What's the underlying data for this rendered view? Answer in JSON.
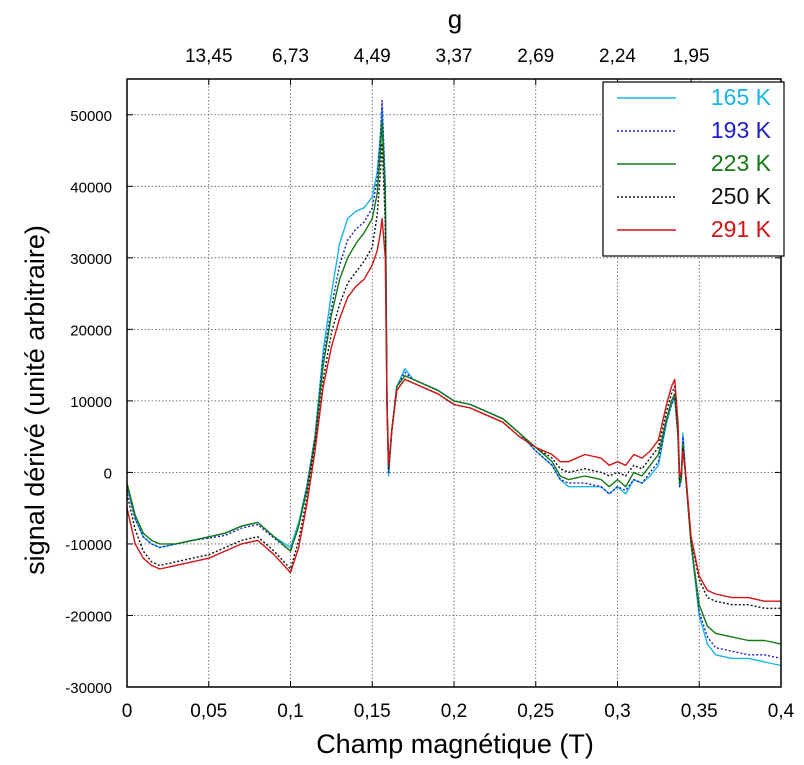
{
  "chart_data": {
    "type": "line",
    "xlabel": "Champ magnétique (T)",
    "ylabel": "signal dérivé (unité arbitraire)",
    "x2label": "g",
    "xlim": [
      0,
      0.4
    ],
    "ylim": [
      -30000,
      55000
    ],
    "grid": true,
    "legend_position": "top-right",
    "x_ticks": [
      {
        "v": 0,
        "label": "0"
      },
      {
        "v": 0.05,
        "label": "0,05"
      },
      {
        "v": 0.1,
        "label": "0,1"
      },
      {
        "v": 0.15,
        "label": "0,15"
      },
      {
        "v": 0.2,
        "label": "0,2"
      },
      {
        "v": 0.25,
        "label": "0,25"
      },
      {
        "v": 0.3,
        "label": "0,3"
      },
      {
        "v": 0.35,
        "label": "0,35"
      },
      {
        "v": 0.4,
        "label": "0,4"
      }
    ],
    "y_ticks": [
      {
        "v": -30000,
        "label": "-30000"
      },
      {
        "v": -20000,
        "label": "-20000"
      },
      {
        "v": -10000,
        "label": "-10000"
      },
      {
        "v": 0,
        "label": "0"
      },
      {
        "v": 10000,
        "label": "10000"
      },
      {
        "v": 20000,
        "label": "20000"
      },
      {
        "v": 30000,
        "label": "30000"
      },
      {
        "v": 40000,
        "label": "40000"
      },
      {
        "v": 50000,
        "label": "50000"
      }
    ],
    "top_ticks": [
      {
        "v": 0.05,
        "label": "13,45"
      },
      {
        "v": 0.1,
        "label": "6,73"
      },
      {
        "v": 0.15,
        "label": "4,49"
      },
      {
        "v": 0.2,
        "label": "3,37"
      },
      {
        "v": 0.25,
        "label": "2,69"
      },
      {
        "v": 0.3,
        "label": "2,24"
      },
      {
        "v": 0.345,
        "label": "1,95"
      }
    ],
    "series": [
      {
        "name": "165 K",
        "color": "#17b6e3",
        "dash": "solid",
        "x": [
          0,
          0.005,
          0.01,
          0.015,
          0.02,
          0.03,
          0.04,
          0.05,
          0.06,
          0.07,
          0.08,
          0.09,
          0.1,
          0.105,
          0.11,
          0.115,
          0.12,
          0.125,
          0.13,
          0.135,
          0.14,
          0.145,
          0.15,
          0.153,
          0.155,
          0.156,
          0.158,
          0.159,
          0.16,
          0.162,
          0.165,
          0.17,
          0.175,
          0.18,
          0.19,
          0.2,
          0.21,
          0.22,
          0.23,
          0.24,
          0.25,
          0.26,
          0.265,
          0.27,
          0.28,
          0.29,
          0.295,
          0.3,
          0.305,
          0.31,
          0.315,
          0.32,
          0.325,
          0.33,
          0.333,
          0.335,
          0.337,
          0.338,
          0.339,
          0.34,
          0.342,
          0.345,
          0.35,
          0.355,
          0.36,
          0.37,
          0.38,
          0.39,
          0.4
        ],
        "y": [
          -2000,
          -6500,
          -9000,
          -10000,
          -10500,
          -10000,
          -9500,
          -9000,
          -8500,
          -7500,
          -7000,
          -9000,
          -10500,
          -7000,
          -2000,
          5000,
          17000,
          25000,
          32000,
          35500,
          36500,
          37000,
          38500,
          42000,
          47000,
          51000,
          40000,
          10000,
          -500,
          6000,
          12000,
          14500,
          13000,
          12500,
          11500,
          10000,
          9500,
          8500,
          7500,
          5500,
          3000,
          1000,
          -1000,
          -2000,
          -2000,
          -2000,
          -3000,
          -2000,
          -3000,
          -1000,
          -1500,
          -500,
          1000,
          7000,
          9500,
          10500,
          5000,
          -2000,
          -1000,
          5500,
          -1500,
          -10000,
          -20000,
          -24000,
          -25500,
          -26000,
          -26000,
          -26500,
          -27000
        ]
      },
      {
        "name": "193 K",
        "color": "#1e1ec8",
        "dash": "dotted",
        "x": [
          0,
          0.005,
          0.01,
          0.015,
          0.02,
          0.03,
          0.04,
          0.05,
          0.06,
          0.07,
          0.08,
          0.09,
          0.1,
          0.105,
          0.11,
          0.115,
          0.12,
          0.125,
          0.13,
          0.135,
          0.14,
          0.145,
          0.15,
          0.153,
          0.155,
          0.156,
          0.158,
          0.159,
          0.16,
          0.162,
          0.165,
          0.17,
          0.175,
          0.18,
          0.19,
          0.2,
          0.21,
          0.22,
          0.23,
          0.24,
          0.25,
          0.26,
          0.265,
          0.27,
          0.28,
          0.29,
          0.295,
          0.3,
          0.305,
          0.31,
          0.315,
          0.32,
          0.325,
          0.33,
          0.333,
          0.335,
          0.337,
          0.338,
          0.339,
          0.34,
          0.342,
          0.345,
          0.35,
          0.355,
          0.36,
          0.37,
          0.38,
          0.39,
          0.4
        ],
        "y": [
          -2000,
          -6500,
          -9000,
          -10000,
          -10500,
          -10000,
          -9500,
          -9200,
          -8800,
          -7800,
          -7300,
          -9200,
          -11000,
          -7500,
          -2000,
          5000,
          16000,
          23000,
          29000,
          32500,
          34000,
          35000,
          37000,
          41000,
          47000,
          52000,
          40000,
          10000,
          0,
          6000,
          12000,
          14000,
          13000,
          12500,
          11500,
          10000,
          9500,
          8500,
          7500,
          5500,
          3000,
          1000,
          -1000,
          -1500,
          -1500,
          -2000,
          -3000,
          -2000,
          -2500,
          -1000,
          -1500,
          0,
          1500,
          7000,
          9500,
          10500,
          5000,
          -2000,
          -1000,
          5000,
          -1500,
          -10000,
          -19500,
          -23000,
          -24500,
          -25000,
          -25500,
          -25500,
          -26000
        ]
      },
      {
        "name": "223 K",
        "color": "#147814",
        "dash": "solid",
        "x": [
          0,
          0.005,
          0.01,
          0.015,
          0.02,
          0.03,
          0.04,
          0.05,
          0.06,
          0.07,
          0.08,
          0.09,
          0.1,
          0.105,
          0.11,
          0.115,
          0.12,
          0.125,
          0.13,
          0.135,
          0.14,
          0.145,
          0.15,
          0.153,
          0.155,
          0.156,
          0.158,
          0.159,
          0.16,
          0.162,
          0.165,
          0.17,
          0.175,
          0.18,
          0.19,
          0.2,
          0.21,
          0.22,
          0.23,
          0.24,
          0.25,
          0.26,
          0.265,
          0.27,
          0.28,
          0.29,
          0.295,
          0.3,
          0.305,
          0.31,
          0.315,
          0.32,
          0.325,
          0.33,
          0.333,
          0.335,
          0.337,
          0.338,
          0.339,
          0.34,
          0.342,
          0.345,
          0.35,
          0.355,
          0.36,
          0.37,
          0.38,
          0.39,
          0.4
        ],
        "y": [
          -1500,
          -6000,
          -8500,
          -9500,
          -10000,
          -10000,
          -9500,
          -9000,
          -8500,
          -7500,
          -7000,
          -9000,
          -11000,
          -7500,
          -2500,
          4500,
          15000,
          22000,
          27000,
          30000,
          32000,
          33500,
          35500,
          39000,
          45000,
          49000,
          38000,
          10000,
          500,
          6000,
          12000,
          13500,
          13000,
          12500,
          11500,
          10000,
          9500,
          8500,
          7500,
          5500,
          3500,
          1500,
          -500,
          -1000,
          -500,
          -1000,
          -2000,
          -1000,
          -2000,
          0,
          -500,
          1000,
          2500,
          7500,
          10000,
          11000,
          5500,
          -1500,
          -1000,
          4000,
          -1500,
          -10000,
          -18500,
          -21500,
          -22500,
          -23000,
          -23500,
          -23500,
          -24000
        ]
      },
      {
        "name": "250 K",
        "color": "#111111",
        "dash": "dotted",
        "x": [
          0,
          0.005,
          0.01,
          0.015,
          0.02,
          0.03,
          0.04,
          0.05,
          0.06,
          0.07,
          0.08,
          0.09,
          0.1,
          0.105,
          0.11,
          0.115,
          0.12,
          0.125,
          0.13,
          0.135,
          0.14,
          0.145,
          0.15,
          0.153,
          0.155,
          0.156,
          0.158,
          0.159,
          0.16,
          0.162,
          0.165,
          0.17,
          0.175,
          0.18,
          0.19,
          0.2,
          0.21,
          0.22,
          0.23,
          0.24,
          0.25,
          0.26,
          0.265,
          0.27,
          0.28,
          0.29,
          0.295,
          0.3,
          0.305,
          0.31,
          0.315,
          0.32,
          0.325,
          0.33,
          0.333,
          0.335,
          0.337,
          0.338,
          0.339,
          0.34,
          0.342,
          0.345,
          0.35,
          0.355,
          0.36,
          0.37,
          0.38,
          0.39,
          0.4
        ],
        "y": [
          -3000,
          -8000,
          -11000,
          -12500,
          -13000,
          -12500,
          -12000,
          -11500,
          -10500,
          -9500,
          -9000,
          -11000,
          -13500,
          -9500,
          -3500,
          4000,
          13000,
          19500,
          23500,
          26500,
          28000,
          29500,
          31500,
          36000,
          42000,
          46000,
          35000,
          9000,
          500,
          6000,
          11500,
          13000,
          12500,
          12000,
          11000,
          9500,
          9000,
          8000,
          7000,
          5000,
          3500,
          2000,
          500,
          0,
          500,
          0,
          -500,
          0,
          -500,
          1000,
          500,
          2000,
          3500,
          8500,
          11000,
          12000,
          6000,
          -1000,
          -500,
          3500,
          -1000,
          -9500,
          -15000,
          -17500,
          -18000,
          -18500,
          -18500,
          -19000,
          -19000
        ]
      },
      {
        "name": "291 K",
        "color": "#d21414",
        "dash": "solid",
        "x": [
          0,
          0.005,
          0.01,
          0.015,
          0.02,
          0.03,
          0.04,
          0.05,
          0.06,
          0.07,
          0.08,
          0.09,
          0.1,
          0.105,
          0.11,
          0.115,
          0.12,
          0.125,
          0.13,
          0.135,
          0.14,
          0.145,
          0.15,
          0.153,
          0.155,
          0.156,
          0.158,
          0.159,
          0.16,
          0.162,
          0.165,
          0.17,
          0.175,
          0.18,
          0.19,
          0.2,
          0.21,
          0.22,
          0.23,
          0.24,
          0.25,
          0.26,
          0.265,
          0.27,
          0.28,
          0.29,
          0.295,
          0.3,
          0.305,
          0.31,
          0.315,
          0.32,
          0.325,
          0.33,
          0.333,
          0.335,
          0.337,
          0.338,
          0.339,
          0.34,
          0.342,
          0.345,
          0.35,
          0.355,
          0.36,
          0.37,
          0.38,
          0.39,
          0.4
        ],
        "y": [
          -5000,
          -10000,
          -12000,
          -13000,
          -13500,
          -13000,
          -12500,
          -12000,
          -11000,
          -10000,
          -9500,
          -11500,
          -14000,
          -10500,
          -4500,
          3000,
          12000,
          17500,
          21500,
          24500,
          26000,
          27000,
          29000,
          31000,
          33500,
          35500,
          30000,
          9000,
          1000,
          6000,
          11500,
          13000,
          12500,
          12000,
          11000,
          9500,
          9000,
          8000,
          7000,
          5000,
          3500,
          2500,
          1500,
          1500,
          2500,
          2000,
          1000,
          1500,
          1000,
          2500,
          2000,
          3000,
          4500,
          9500,
          12000,
          13000,
          7000,
          -500,
          0,
          3000,
          -1000,
          -9000,
          -14500,
          -16500,
          -17000,
          -17500,
          -17500,
          -18000,
          -18000
        ]
      }
    ]
  }
}
